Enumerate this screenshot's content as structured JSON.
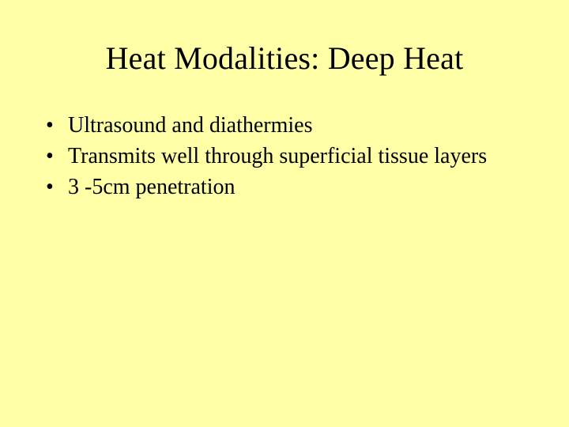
{
  "slide": {
    "background_color": "#ffffa8",
    "text_color": "#000000",
    "font_family": "Times New Roman",
    "title": {
      "text": "Heat Modalities: Deep Heat",
      "fontsize": 40,
      "weight": "normal",
      "align": "center"
    },
    "bullets": {
      "fontsize": 28,
      "marker": "•",
      "items": [
        "Ultrasound and diathermies",
        "Transmits well through superficial tissue layers",
        "3 -5cm penetration"
      ]
    }
  }
}
